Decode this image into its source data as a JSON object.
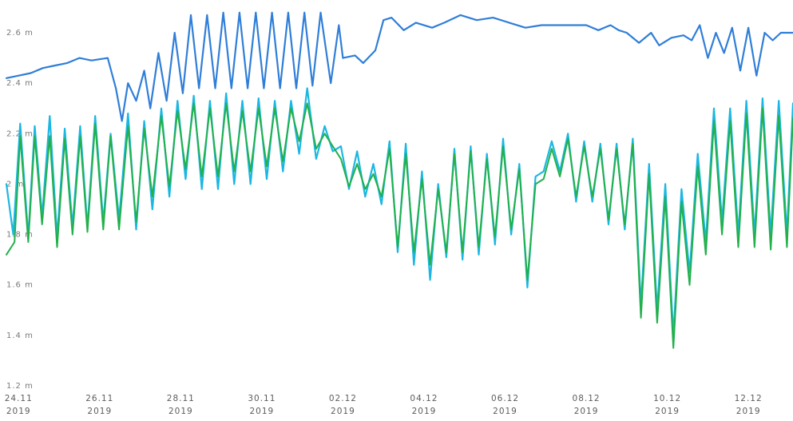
{
  "chart_data": {
    "type": "line",
    "title": "",
    "xlabel": "",
    "ylabel": "",
    "ylim": [
      1.2,
      2.7
    ],
    "x_range_days": [
      0,
      19.4
    ],
    "grid": false,
    "legend": "none",
    "y_ticks": [
      {
        "value": 1.2,
        "label": "1.2 m"
      },
      {
        "value": 1.4,
        "label": "1.4 m"
      },
      {
        "value": 1.6,
        "label": "1.6 m"
      },
      {
        "value": 1.8,
        "label": "1.8 m"
      },
      {
        "value": 2.0,
        "label": "2 m"
      },
      {
        "value": 2.2,
        "label": "2.2 m"
      },
      {
        "value": 2.4,
        "label": "2.4 m"
      },
      {
        "value": 2.6,
        "label": "2.6 m"
      }
    ],
    "x_ticks": [
      {
        "day": 0.3,
        "line1": "24.11",
        "line2": "2019"
      },
      {
        "day": 2.3,
        "line1": "26.11",
        "line2": "2019"
      },
      {
        "day": 4.3,
        "line1": "28.11",
        "line2": "2019"
      },
      {
        "day": 6.3,
        "line1": "30.11",
        "line2": "2019"
      },
      {
        "day": 8.3,
        "line1": "02.12",
        "line2": "2019"
      },
      {
        "day": 10.3,
        "line1": "04.12",
        "line2": "2019"
      },
      {
        "day": 12.3,
        "line1": "06.12",
        "line2": "2019"
      },
      {
        "day": 14.3,
        "line1": "08.12",
        "line2": "2019"
      },
      {
        "day": 16.3,
        "line1": "10.12",
        "line2": "2019"
      },
      {
        "day": 18.3,
        "line1": "12.12",
        "line2": "2019"
      }
    ],
    "series": [
      {
        "color": "#2f7ed8",
        "width": 2.2,
        "points": [
          [
            0.0,
            2.42
          ],
          [
            0.3,
            2.43
          ],
          [
            0.6,
            2.44
          ],
          [
            0.9,
            2.46
          ],
          [
            1.2,
            2.47
          ],
          [
            1.5,
            2.48
          ],
          [
            1.8,
            2.5
          ],
          [
            2.1,
            2.49
          ],
          [
            2.5,
            2.5
          ],
          [
            2.7,
            2.38
          ],
          [
            2.85,
            2.25
          ],
          [
            3.0,
            2.4
          ],
          [
            3.2,
            2.33
          ],
          [
            3.4,
            2.45
          ],
          [
            3.55,
            2.3
          ],
          [
            3.75,
            2.52
          ],
          [
            3.95,
            2.33
          ],
          [
            4.15,
            2.6
          ],
          [
            4.35,
            2.36
          ],
          [
            4.55,
            2.67
          ],
          [
            4.75,
            2.38
          ],
          [
            4.95,
            2.67
          ],
          [
            5.15,
            2.38
          ],
          [
            5.35,
            2.68
          ],
          [
            5.55,
            2.38
          ],
          [
            5.75,
            2.68
          ],
          [
            5.95,
            2.38
          ],
          [
            6.15,
            2.68
          ],
          [
            6.35,
            2.38
          ],
          [
            6.55,
            2.68
          ],
          [
            6.75,
            2.38
          ],
          [
            6.95,
            2.68
          ],
          [
            7.15,
            2.38
          ],
          [
            7.35,
            2.68
          ],
          [
            7.55,
            2.39
          ],
          [
            7.75,
            2.68
          ],
          [
            8.0,
            2.4
          ],
          [
            8.2,
            2.63
          ],
          [
            8.3,
            2.5
          ],
          [
            8.6,
            2.51
          ],
          [
            8.8,
            2.48
          ],
          [
            9.1,
            2.53
          ],
          [
            9.3,
            2.65
          ],
          [
            9.5,
            2.66
          ],
          [
            9.8,
            2.61
          ],
          [
            10.1,
            2.64
          ],
          [
            10.5,
            2.62
          ],
          [
            10.8,
            2.64
          ],
          [
            11.2,
            2.67
          ],
          [
            11.6,
            2.65
          ],
          [
            12.0,
            2.66
          ],
          [
            12.4,
            2.64
          ],
          [
            12.8,
            2.62
          ],
          [
            13.2,
            2.63
          ],
          [
            13.6,
            2.63
          ],
          [
            14.0,
            2.63
          ],
          [
            14.3,
            2.63
          ],
          [
            14.6,
            2.61
          ],
          [
            14.9,
            2.63
          ],
          [
            15.1,
            2.61
          ],
          [
            15.3,
            2.6
          ],
          [
            15.6,
            2.56
          ],
          [
            15.9,
            2.6
          ],
          [
            16.1,
            2.55
          ],
          [
            16.4,
            2.58
          ],
          [
            16.7,
            2.59
          ],
          [
            16.9,
            2.57
          ],
          [
            17.1,
            2.63
          ],
          [
            17.3,
            2.5
          ],
          [
            17.5,
            2.6
          ],
          [
            17.7,
            2.52
          ],
          [
            17.9,
            2.62
          ],
          [
            18.1,
            2.45
          ],
          [
            18.3,
            2.62
          ],
          [
            18.5,
            2.43
          ],
          [
            18.7,
            2.6
          ],
          [
            18.9,
            2.57
          ],
          [
            19.1,
            2.6
          ],
          [
            19.4,
            2.6
          ]
        ]
      },
      {
        "color": "#1bb7e2",
        "width": 2.2,
        "points": [
          [
            0.0,
            2.0
          ],
          [
            0.17,
            1.8
          ],
          [
            0.34,
            2.24
          ],
          [
            0.54,
            1.79
          ],
          [
            0.7,
            2.23
          ],
          [
            0.88,
            1.87
          ],
          [
            1.07,
            2.27
          ],
          [
            1.25,
            1.79
          ],
          [
            1.44,
            2.22
          ],
          [
            1.63,
            1.83
          ],
          [
            1.82,
            2.23
          ],
          [
            2.0,
            1.83
          ],
          [
            2.19,
            2.27
          ],
          [
            2.39,
            1.85
          ],
          [
            2.57,
            2.2
          ],
          [
            2.78,
            1.86
          ],
          [
            3.0,
            2.28
          ],
          [
            3.2,
            1.82
          ],
          [
            3.4,
            2.25
          ],
          [
            3.6,
            1.9
          ],
          [
            3.82,
            2.3
          ],
          [
            4.02,
            1.95
          ],
          [
            4.22,
            2.33
          ],
          [
            4.42,
            2.02
          ],
          [
            4.62,
            2.35
          ],
          [
            4.82,
            1.98
          ],
          [
            5.02,
            2.33
          ],
          [
            5.22,
            1.98
          ],
          [
            5.42,
            2.36
          ],
          [
            5.62,
            2.0
          ],
          [
            5.82,
            2.33
          ],
          [
            6.02,
            2.0
          ],
          [
            6.22,
            2.34
          ],
          [
            6.42,
            2.02
          ],
          [
            6.62,
            2.33
          ],
          [
            6.82,
            2.05
          ],
          [
            7.02,
            2.33
          ],
          [
            7.22,
            2.12
          ],
          [
            7.42,
            2.38
          ],
          [
            7.64,
            2.1
          ],
          [
            7.85,
            2.23
          ],
          [
            8.05,
            2.13
          ],
          [
            8.25,
            2.15
          ],
          [
            8.45,
            1.98
          ],
          [
            8.65,
            2.13
          ],
          [
            8.85,
            1.95
          ],
          [
            9.05,
            2.08
          ],
          [
            9.25,
            1.92
          ],
          [
            9.45,
            2.17
          ],
          [
            9.65,
            1.73
          ],
          [
            9.85,
            2.16
          ],
          [
            10.05,
            1.68
          ],
          [
            10.25,
            2.05
          ],
          [
            10.45,
            1.62
          ],
          [
            10.65,
            2.0
          ],
          [
            10.85,
            1.71
          ],
          [
            11.05,
            2.14
          ],
          [
            11.25,
            1.7
          ],
          [
            11.45,
            2.15
          ],
          [
            11.65,
            1.72
          ],
          [
            11.85,
            2.12
          ],
          [
            12.05,
            1.76
          ],
          [
            12.25,
            2.18
          ],
          [
            12.45,
            1.8
          ],
          [
            12.65,
            2.08
          ],
          [
            12.85,
            1.59
          ],
          [
            13.05,
            2.03
          ],
          [
            13.25,
            2.05
          ],
          [
            13.45,
            2.17
          ],
          [
            13.65,
            2.05
          ],
          [
            13.85,
            2.2
          ],
          [
            14.05,
            1.93
          ],
          [
            14.25,
            2.17
          ],
          [
            14.45,
            1.93
          ],
          [
            14.65,
            2.16
          ],
          [
            14.85,
            1.84
          ],
          [
            15.05,
            2.16
          ],
          [
            15.25,
            1.82
          ],
          [
            15.45,
            2.18
          ],
          [
            15.65,
            1.52
          ],
          [
            15.85,
            2.08
          ],
          [
            16.05,
            1.5
          ],
          [
            16.25,
            2.0
          ],
          [
            16.45,
            1.4
          ],
          [
            16.65,
            1.98
          ],
          [
            16.85,
            1.65
          ],
          [
            17.05,
            2.12
          ],
          [
            17.25,
            1.77
          ],
          [
            17.45,
            2.3
          ],
          [
            17.65,
            1.85
          ],
          [
            17.85,
            2.3
          ],
          [
            18.05,
            1.8
          ],
          [
            18.25,
            2.33
          ],
          [
            18.45,
            1.8
          ],
          [
            18.65,
            2.34
          ],
          [
            18.85,
            1.8
          ],
          [
            19.05,
            2.33
          ],
          [
            19.25,
            1.8
          ],
          [
            19.4,
            2.32
          ]
        ]
      },
      {
        "color": "#22b04b",
        "width": 2.0,
        "points": [
          [
            0.0,
            1.72
          ],
          [
            0.2,
            1.77
          ],
          [
            0.34,
            2.19
          ],
          [
            0.54,
            1.77
          ],
          [
            0.7,
            2.19
          ],
          [
            0.88,
            1.84
          ],
          [
            1.07,
            2.19
          ],
          [
            1.25,
            1.75
          ],
          [
            1.44,
            2.18
          ],
          [
            1.63,
            1.8
          ],
          [
            1.82,
            2.19
          ],
          [
            2.0,
            1.81
          ],
          [
            2.19,
            2.24
          ],
          [
            2.39,
            1.82
          ],
          [
            2.57,
            2.19
          ],
          [
            2.78,
            1.82
          ],
          [
            3.0,
            2.23
          ],
          [
            3.2,
            1.85
          ],
          [
            3.4,
            2.22
          ],
          [
            3.6,
            1.95
          ],
          [
            3.82,
            2.27
          ],
          [
            4.02,
            1.99
          ],
          [
            4.22,
            2.29
          ],
          [
            4.42,
            2.06
          ],
          [
            4.62,
            2.32
          ],
          [
            4.82,
            2.03
          ],
          [
            5.02,
            2.3
          ],
          [
            5.22,
            2.03
          ],
          [
            5.42,
            2.32
          ],
          [
            5.62,
            2.05
          ],
          [
            5.82,
            2.29
          ],
          [
            6.02,
            2.05
          ],
          [
            6.22,
            2.3
          ],
          [
            6.42,
            2.07
          ],
          [
            6.62,
            2.3
          ],
          [
            6.82,
            2.09
          ],
          [
            7.02,
            2.3
          ],
          [
            7.22,
            2.17
          ],
          [
            7.42,
            2.32
          ],
          [
            7.64,
            2.14
          ],
          [
            7.85,
            2.2
          ],
          [
            8.05,
            2.15
          ],
          [
            8.25,
            2.1
          ],
          [
            8.45,
            1.99
          ],
          [
            8.65,
            2.08
          ],
          [
            8.85,
            1.98
          ],
          [
            9.05,
            2.04
          ],
          [
            9.25,
            1.95
          ],
          [
            9.45,
            2.14
          ],
          [
            9.65,
            1.75
          ],
          [
            9.85,
            2.12
          ],
          [
            10.05,
            1.73
          ],
          [
            10.25,
            2.02
          ],
          [
            10.45,
            1.68
          ],
          [
            10.65,
            1.98
          ],
          [
            10.85,
            1.73
          ],
          [
            11.05,
            2.12
          ],
          [
            11.25,
            1.73
          ],
          [
            11.45,
            2.13
          ],
          [
            11.65,
            1.75
          ],
          [
            11.85,
            2.1
          ],
          [
            12.05,
            1.79
          ],
          [
            12.25,
            2.15
          ],
          [
            12.45,
            1.82
          ],
          [
            12.65,
            2.06
          ],
          [
            12.85,
            1.62
          ],
          [
            13.05,
            2.0
          ],
          [
            13.25,
            2.02
          ],
          [
            13.45,
            2.14
          ],
          [
            13.65,
            2.03
          ],
          [
            13.85,
            2.18
          ],
          [
            14.05,
            1.95
          ],
          [
            14.25,
            2.15
          ],
          [
            14.45,
            1.95
          ],
          [
            14.65,
            2.14
          ],
          [
            14.85,
            1.86
          ],
          [
            15.05,
            2.14
          ],
          [
            15.25,
            1.84
          ],
          [
            15.45,
            2.16
          ],
          [
            15.65,
            1.47
          ],
          [
            15.85,
            2.04
          ],
          [
            16.05,
            1.45
          ],
          [
            16.25,
            1.95
          ],
          [
            16.45,
            1.35
          ],
          [
            16.65,
            1.93
          ],
          [
            16.85,
            1.6
          ],
          [
            17.05,
            2.07
          ],
          [
            17.25,
            1.72
          ],
          [
            17.45,
            2.25
          ],
          [
            17.65,
            1.8
          ],
          [
            17.85,
            2.25
          ],
          [
            18.05,
            1.75
          ],
          [
            18.25,
            2.28
          ],
          [
            18.45,
            1.75
          ],
          [
            18.65,
            2.3
          ],
          [
            18.85,
            1.74
          ],
          [
            19.05,
            2.27
          ],
          [
            19.25,
            1.75
          ],
          [
            19.4,
            2.26
          ]
        ]
      }
    ]
  }
}
